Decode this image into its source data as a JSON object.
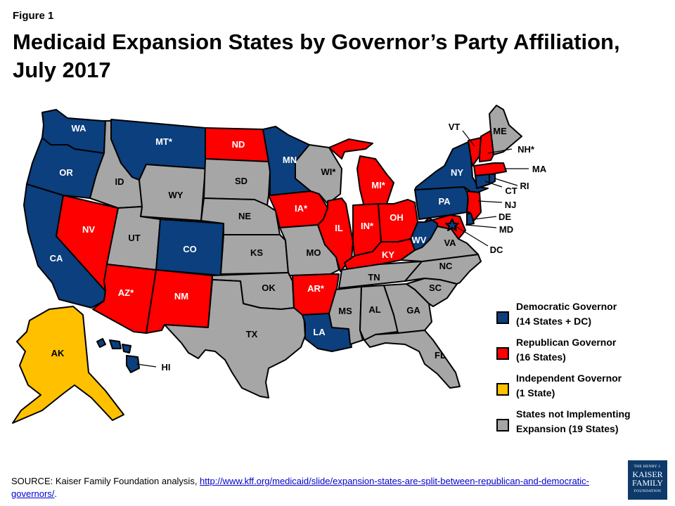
{
  "figure_label": "Figure 1",
  "title": "Medicaid Expansion States by Governor’s Party Affiliation, July 2017",
  "colors": {
    "democratic": "#0b3f7e",
    "republican": "#ff0000",
    "independent": "#ffc000",
    "not_implementing": "#a6a6a6"
  },
  "states": {
    "WA": {
      "label": "WA",
      "status": "democratic"
    },
    "OR": {
      "label": "OR",
      "status": "democratic"
    },
    "CA": {
      "label": "CA",
      "status": "democratic"
    },
    "NV": {
      "label": "NV",
      "status": "republican"
    },
    "ID": {
      "label": "ID",
      "status": "not_implementing"
    },
    "MT": {
      "label": "MT*",
      "status": "democratic"
    },
    "WY": {
      "label": "WY",
      "status": "not_implementing"
    },
    "UT": {
      "label": "UT",
      "status": "not_implementing"
    },
    "AZ": {
      "label": "AZ*",
      "status": "republican"
    },
    "CO": {
      "label": "CO",
      "status": "democratic"
    },
    "NM": {
      "label": "NM",
      "status": "republican"
    },
    "ND": {
      "label": "ND",
      "status": "republican"
    },
    "SD": {
      "label": "SD",
      "status": "not_implementing"
    },
    "NE": {
      "label": "NE",
      "status": "not_implementing"
    },
    "KS": {
      "label": "KS",
      "status": "not_implementing"
    },
    "OK": {
      "label": "OK",
      "status": "not_implementing"
    },
    "TX": {
      "label": "TX",
      "status": "not_implementing"
    },
    "MN": {
      "label": "MN",
      "status": "democratic"
    },
    "IA": {
      "label": "IA*",
      "status": "republican"
    },
    "MO": {
      "label": "MO",
      "status": "not_implementing"
    },
    "AR": {
      "label": "AR*",
      "status": "republican"
    },
    "LA": {
      "label": "LA",
      "status": "democratic"
    },
    "WI": {
      "label": "WI*",
      "status": "not_implementing"
    },
    "IL": {
      "label": "IL",
      "status": "republican"
    },
    "MI": {
      "label": "MI*",
      "status": "republican"
    },
    "IN": {
      "label": "IN*",
      "status": "republican"
    },
    "OH": {
      "label": "OH",
      "status": "republican"
    },
    "KY": {
      "label": "KY",
      "status": "republican"
    },
    "TN": {
      "label": "TN",
      "status": "not_implementing"
    },
    "MS": {
      "label": "MS",
      "status": "not_implementing"
    },
    "AL": {
      "label": "AL",
      "status": "not_implementing"
    },
    "GA": {
      "label": "GA",
      "status": "not_implementing"
    },
    "FL": {
      "label": "FL",
      "status": "not_implementing"
    },
    "SC": {
      "label": "SC",
      "status": "not_implementing"
    },
    "NC": {
      "label": "NC",
      "status": "not_implementing"
    },
    "VA": {
      "label": "VA",
      "status": "not_implementing"
    },
    "WV": {
      "label": "WV",
      "status": "democratic"
    },
    "PA": {
      "label": "PA",
      "status": "democratic"
    },
    "NY": {
      "label": "NY",
      "status": "democratic"
    },
    "VT": {
      "label": "VT",
      "status": "republican"
    },
    "NH": {
      "label": "NH*",
      "status": "republican"
    },
    "ME": {
      "label": "ME",
      "status": "not_implementing"
    },
    "MA": {
      "label": "MA",
      "status": "republican"
    },
    "RI": {
      "label": "RI",
      "status": "democratic"
    },
    "CT": {
      "label": "CT",
      "status": "democratic"
    },
    "NJ": {
      "label": "NJ",
      "status": "republican"
    },
    "DE": {
      "label": "DE",
      "status": "democratic"
    },
    "MD": {
      "label": "MD",
      "status": "republican"
    },
    "DC": {
      "label": "DC",
      "status": "democratic"
    },
    "AK": {
      "label": "AK",
      "status": "independent"
    },
    "HI": {
      "label": "HI",
      "status": "democratic"
    }
  },
  "legend": [
    {
      "status": "democratic",
      "line1": "Democratic Governor",
      "line2": "(14 States + DC)"
    },
    {
      "status": "republican",
      "line1": "Republican Governor",
      "line2": "(16 States)"
    },
    {
      "status": "independent",
      "line1": "Independent Governor",
      "line2": "(1 State)"
    },
    {
      "status": "not_implementing",
      "line1": "States not Implementing",
      "line2": "Expansion (19 States)"
    }
  ],
  "source": {
    "prefix": "SOURCE: Kaiser Family Foundation analysis, ",
    "link": "http://www.kff.org/medicaid/slide/expansion-states-are-split-between-republican-and-democratic-governors/",
    "suffix": "."
  },
  "logo": {
    "line1": "THE HENRY J.",
    "line2": "KAISER",
    "line3": "FAMILY",
    "line4": "FOUNDATION"
  }
}
